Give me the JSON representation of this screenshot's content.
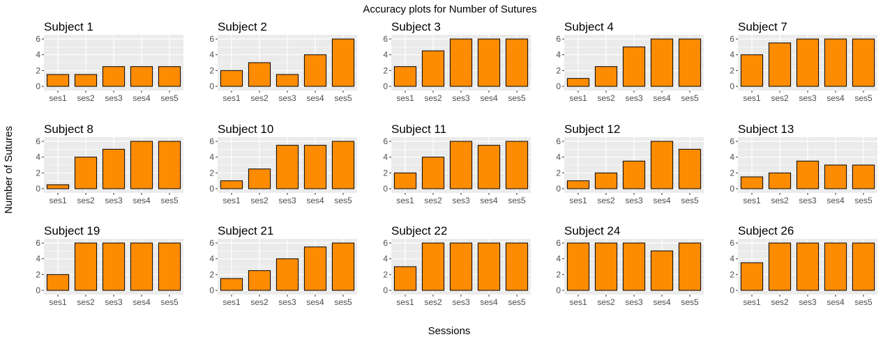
{
  "chart_data": {
    "type": "bar",
    "title": "Accuracy plots for Number of Sutures",
    "xlabel": "Sessions",
    "ylabel": "Number of Sutures",
    "categories": [
      "ses1",
      "ses2",
      "ses3",
      "ses4",
      "ses5"
    ],
    "ylim": [
      0,
      6
    ],
    "yticks": [
      0,
      2,
      4,
      6
    ],
    "grid": true,
    "bar_color": "#FF8C00",
    "bar_outline": "#000000",
    "panel_background": "#EBEBEB",
    "gridline_color": "#FFFFFF",
    "layout": {
      "rows": 3,
      "cols": 5
    },
    "panels": [
      {
        "title": "Subject 1",
        "values": [
          1.5,
          1.5,
          2.5,
          2.5,
          2.5
        ]
      },
      {
        "title": "Subject 2",
        "values": [
          2,
          3,
          1.5,
          4,
          6
        ]
      },
      {
        "title": "Subject 3",
        "values": [
          2.5,
          4.5,
          6,
          6,
          6
        ]
      },
      {
        "title": "Subject 4",
        "values": [
          1,
          2.5,
          5,
          6,
          6
        ]
      },
      {
        "title": "Subject 7",
        "values": [
          4,
          5.5,
          6,
          6,
          6
        ]
      },
      {
        "title": "Subject 8",
        "values": [
          0.5,
          4,
          5,
          6,
          6
        ]
      },
      {
        "title": "Subject 10",
        "values": [
          1,
          2.5,
          5.5,
          5.5,
          6
        ]
      },
      {
        "title": "Subject 11",
        "values": [
          2,
          4,
          6,
          5.5,
          6
        ]
      },
      {
        "title": "Subject 12",
        "values": [
          1,
          2,
          3.5,
          6,
          5
        ]
      },
      {
        "title": "Subject 13",
        "values": [
          1.5,
          2,
          3.5,
          3,
          3
        ]
      },
      {
        "title": "Subject 19",
        "values": [
          2,
          6,
          6,
          6,
          6
        ]
      },
      {
        "title": "Subject 21",
        "values": [
          1.5,
          2.5,
          4,
          5.5,
          6
        ]
      },
      {
        "title": "Subject 22",
        "values": [
          3,
          6,
          6,
          6,
          6
        ]
      },
      {
        "title": "Subject 24",
        "values": [
          6,
          6,
          6,
          5,
          6
        ]
      },
      {
        "title": "Subject 26",
        "values": [
          3.5,
          6,
          6,
          6,
          6
        ]
      }
    ]
  }
}
